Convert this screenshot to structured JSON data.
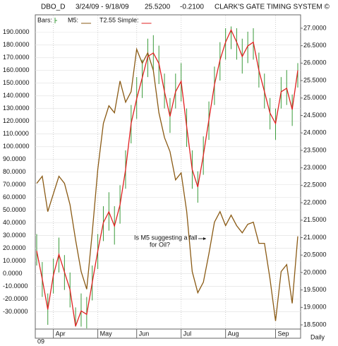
{
  "header": {
    "symbol": "DBO_D",
    "range": "3/24/09 - 9/18/09",
    "last": "25.5200",
    "change": "-0.2100",
    "system": "CLARK'S GATE TIMING SYSTEM ©"
  },
  "chart_data": {
    "type": "line",
    "categories": [
      null,
      null,
      null,
      "Apr",
      null,
      null,
      null,
      null,
      null,
      null,
      null,
      "May",
      null,
      null,
      null,
      null,
      null,
      null,
      "Jun",
      null,
      null,
      null,
      null,
      null,
      null,
      null,
      "Jul",
      null,
      null,
      null,
      null,
      null,
      null,
      null,
      "Aug",
      null,
      null,
      null,
      null,
      null,
      null,
      null,
      null,
      "Sep",
      null,
      null,
      null,
      null
    ],
    "year_label": "09",
    "period_label": "Daily",
    "annotation": [
      "Is M5 suggesting a fall",
      "for Oil?"
    ],
    "grid": true,
    "ylim": [
      -43,
      196
    ],
    "yticks": [
      {
        "value": -30,
        "label": "-30.0000"
      },
      {
        "value": -20,
        "label": "-20.0000"
      },
      {
        "value": -10,
        "label": "-10.0000"
      },
      {
        "value": 0,
        "label": "0.0000"
      },
      {
        "value": 10,
        "label": "10.0000"
      },
      {
        "value": 20,
        "label": "20.0000"
      },
      {
        "value": 30,
        "label": "30.0000"
      },
      {
        "value": 40,
        "label": "40.0000"
      },
      {
        "value": 50,
        "label": "50.0000"
      },
      {
        "value": 60,
        "label": "60.0000"
      },
      {
        "value": 70,
        "label": "70.0000"
      },
      {
        "value": 80,
        "label": "80.0000"
      },
      {
        "value": 90,
        "label": "90.0000"
      },
      {
        "value": 100,
        "label": "100.0000"
      },
      {
        "value": 110,
        "label": "110.0000"
      },
      {
        "value": 120,
        "label": "120.0000"
      },
      {
        "value": 130,
        "label": "130.0000"
      },
      {
        "value": 140,
        "label": "140.0000"
      },
      {
        "value": 150,
        "label": "150.0000"
      },
      {
        "value": 160,
        "label": "160.0000"
      },
      {
        "value": 170,
        "label": "170.0000"
      },
      {
        "value": 180,
        "label": "180.0000"
      },
      {
        "value": 190,
        "label": "190.0000"
      }
    ],
    "y2lim": [
      18.4,
      27.1
    ],
    "y2ticks": [
      {
        "value": 18.5,
        "label": "18.5000"
      },
      {
        "value": 19,
        "label": "19.0000"
      },
      {
        "value": 19.5,
        "label": "19.5000"
      },
      {
        "value": 20,
        "label": "20.0000"
      },
      {
        "value": 20.5,
        "label": "20.5000"
      },
      {
        "value": 21,
        "label": "21.0000"
      },
      {
        "value": 21.5,
        "label": "21.5000"
      },
      {
        "value": 22,
        "label": "22.0000"
      },
      {
        "value": 22.5,
        "label": "22.5000"
      },
      {
        "value": 23,
        "label": "23.0000"
      },
      {
        "value": 23.5,
        "label": "23.5000"
      },
      {
        "value": 24,
        "label": "24.0000"
      },
      {
        "value": 24.5,
        "label": "24.5000"
      },
      {
        "value": 25,
        "label": "25.0000"
      },
      {
        "value": 25.5,
        "label": "25.5000"
      },
      {
        "value": 26,
        "label": "26.0000"
      },
      {
        "value": 26.5,
        "label": "26.5000"
      },
      {
        "value": 27,
        "label": "27.0000"
      }
    ],
    "series": [
      {
        "name": "Bars:",
        "kind": "bars",
        "axis": "y2",
        "color": "#3a9a3a",
        "high": [
          21.1,
          20.3,
          19.4,
          20.4,
          21.0,
          20.5,
          20.0,
          19.0,
          19.4,
          19.3,
          20.2,
          21.1,
          21.9,
          22.3,
          21.9,
          22.5,
          23.5,
          24.8,
          25.6,
          26.1,
          26.7,
          26.8,
          26.5,
          25.7,
          25.0,
          25.7,
          26.0,
          24.7,
          23.5,
          22.9,
          23.9,
          24.9,
          25.9,
          26.6,
          27.0,
          27.05,
          27.0,
          26.7,
          26.9,
          27.0,
          26.3,
          25.7,
          25.0,
          24.7,
          25.6,
          25.8,
          25.1,
          26.0
        ],
        "low": [
          20.2,
          19.3,
          18.5,
          19.4,
          20.0,
          19.5,
          19.0,
          18.45,
          18.45,
          18.4,
          19.2,
          20.1,
          20.9,
          21.2,
          20.8,
          21.4,
          22.4,
          23.7,
          24.4,
          25.0,
          25.6,
          25.8,
          25.4,
          24.7,
          24.0,
          24.7,
          24.9,
          23.6,
          22.4,
          22.0,
          22.8,
          23.8,
          24.8,
          25.5,
          26.1,
          26.4,
          26.1,
          25.7,
          26.0,
          26.1,
          25.3,
          24.7,
          24.1,
          23.8,
          24.7,
          24.8,
          24.2,
          25.3
        ]
      },
      {
        "name": "M5:",
        "kind": "line",
        "axis": "y",
        "color": "#8a5a14",
        "values": [
          71.1,
          76.7,
          48.9,
          62.8,
          76.7,
          71.1,
          54.4,
          26.7,
          1.7,
          -12.2,
          32.2,
          82.2,
          118.3,
          132.2,
          126.7,
          151.7,
          135,
          143.3,
          176.7,
          165.6,
          173.9,
          160,
          126.7,
          107.2,
          96.1,
          73.9,
          79.4,
          48.9,
          1.7,
          -15,
          -6.7,
          15.6,
          40.6,
          48.9,
          37.8,
          46.1,
          37.8,
          32.2,
          38.9,
          40.6,
          23.9,
          23.9,
          -3.9,
          -37.2,
          1.7,
          7.2,
          -23.3,
          29.4
        ]
      },
      {
        "name": "T2.55 Simple:",
        "kind": "line",
        "axis": "y2",
        "color": "#e02020",
        "values": [
          20.62,
          19.81,
          18.94,
          19.92,
          20.52,
          20.01,
          19.51,
          18.46,
          18.9,
          18.8,
          19.71,
          20.62,
          21.43,
          21.74,
          21.33,
          21.94,
          22.95,
          24.27,
          24.98,
          25.58,
          26.19,
          26.29,
          25.99,
          25.18,
          24.47,
          25.18,
          25.48,
          24.17,
          22.95,
          22.45,
          23.36,
          24.37,
          25.38,
          26.09,
          26.6,
          26.95,
          26.6,
          26.19,
          26.49,
          26.6,
          25.79,
          25.18,
          24.57,
          24.27,
          25.18,
          25.28,
          24.67,
          25.79
        ]
      }
    ]
  }
}
